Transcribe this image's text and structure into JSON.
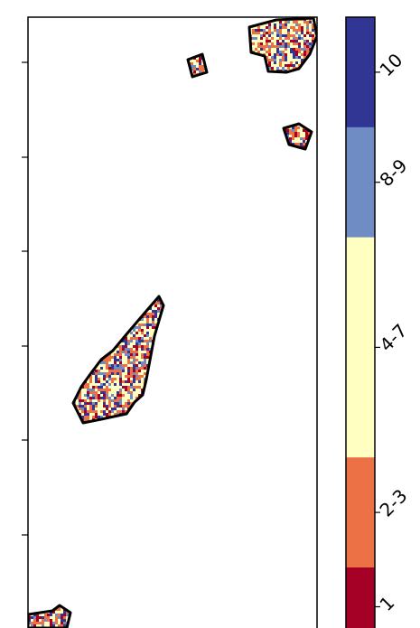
{
  "map": {
    "frame_color": "#000000",
    "outline_color": "#000000",
    "y_tick_count": 6,
    "regions": [
      {
        "name": "parcel-top-right-large",
        "pattern": "mixed"
      },
      {
        "name": "parcel-top-small-square",
        "pattern": "mixed"
      },
      {
        "name": "parcel-right-small",
        "pattern": "mixed"
      },
      {
        "name": "parcel-center-elongated",
        "pattern": "mixed"
      },
      {
        "name": "parcel-bottom-left",
        "pattern": "mixed"
      }
    ]
  },
  "colorbar": {
    "bands": [
      {
        "label": "10",
        "color": "#313695"
      },
      {
        "label": "8-9",
        "color": "#6f8dc4"
      },
      {
        "label": "4-7",
        "color": "#ffffc2"
      },
      {
        "label": "2-3",
        "color": "#ec7145"
      },
      {
        "label": "1",
        "color": "#a50026"
      }
    ],
    "band_proportions": [
      0.175,
      0.175,
      0.35,
      0.175,
      0.125
    ],
    "tick_label_rotation": "diagonal"
  }
}
